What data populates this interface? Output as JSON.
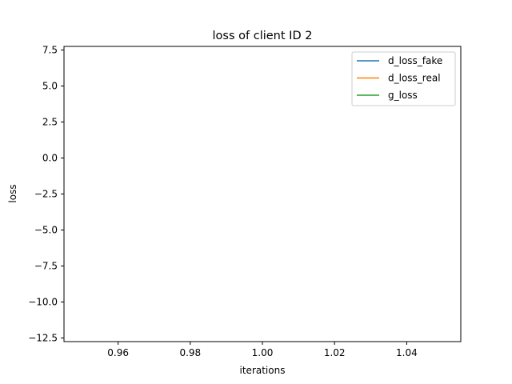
{
  "chart_data": {
    "type": "line",
    "title": "loss of client ID 2",
    "xlabel": "iterations",
    "ylabel": "loss",
    "xlim": [
      0.945,
      1.055
    ],
    "ylim": [
      -12.75,
      7.75
    ],
    "x_ticks": [
      0.96,
      0.98,
      1.0,
      1.02,
      1.04
    ],
    "x_tick_labels": [
      "0.96",
      "0.98",
      "1.00",
      "1.02",
      "1.04"
    ],
    "y_ticks": [
      7.5,
      5.0,
      2.5,
      0.0,
      -2.5,
      -5.0,
      -7.5,
      -10.0,
      -12.5
    ],
    "y_tick_labels": [
      "7.5",
      "5.0",
      "2.5",
      "0.0",
      "−2.5",
      "−5.0",
      "−7.5",
      "−10.0",
      "−12.5"
    ],
    "grid": false,
    "legend_position": "top-right",
    "series": [
      {
        "name": "d_loss_fake",
        "color": "#1f77b4",
        "x": [
          1
        ],
        "y": [
          null
        ]
      },
      {
        "name": "d_loss_real",
        "color": "#ff7f0e",
        "x": [
          1
        ],
        "y": [
          null
        ]
      },
      {
        "name": "g_loss",
        "color": "#2ca02c",
        "x": [
          1
        ],
        "y": [
          null
        ]
      }
    ]
  }
}
